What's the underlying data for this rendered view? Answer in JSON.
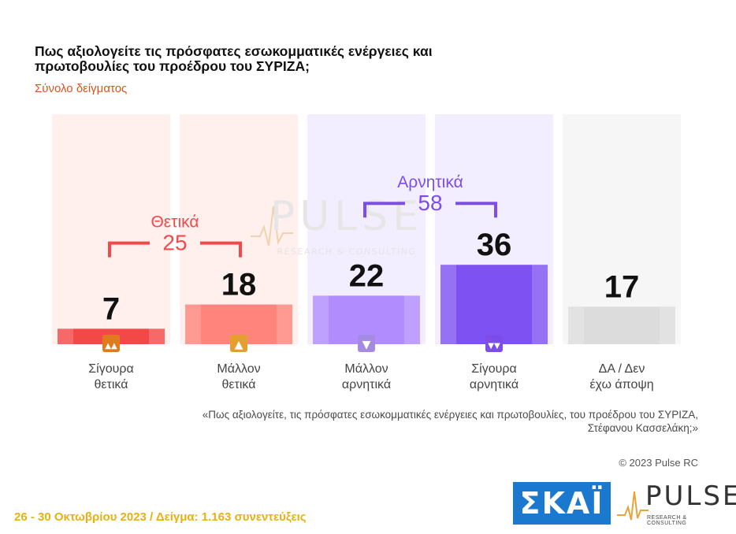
{
  "header": {
    "title": "Πως αξιολογείτε τις πρόσφατες εσωκομματικές ενέργειες και πρωτοβουλίες του προέδρου του ΣΥΡΙΖΑ;",
    "subtitle": "Σύνολο δείγματος"
  },
  "chart_data": {
    "type": "bar",
    "categories": [
      "Σίγουρα θετικά",
      "Μάλλον θετικά",
      "Μάλλον αρνητικά",
      "Σίγουρα αρνητικά",
      "ΔΑ / Δεν έχω άποψη"
    ],
    "values": [
      7,
      18,
      22,
      36,
      17
    ],
    "ylim": [
      0,
      100
    ],
    "colors": [
      "#f34848",
      "#ff847c",
      "#b08cff",
      "#7e52f2",
      "#dcdcdc"
    ],
    "groups": [
      {
        "label": "Θετικά",
        "value": 25,
        "color": "#f04a4a"
      },
      {
        "label": "Αρνητικά",
        "value": 58,
        "color": "#7c4de8"
      }
    ],
    "icons": [
      "double-thumbs-up-icon",
      "thumbs-up-icon",
      "thumbs-down-icon",
      "double-thumbs-down-icon",
      ""
    ]
  },
  "watermark": {
    "word": "PULSE",
    "sub": "RESEARCH & CONSULTING"
  },
  "notes": {
    "question": "«Πως αξιολογείτε, τις πρόσφατες εσωκομματικές ενέργειες και πρωτοβουλίες, του προέδρου του ΣΥΡΙΖΑ, Στέφανου Κασσελάκη;»",
    "copyright": "© 2023 Pulse RC"
  },
  "footer": {
    "text": "26 - 30 Οκτωβρίου 2023 / Δείγμα: 1.163 συνεντεύξεις"
  },
  "logos": {
    "skai": "ΣΚΑΪ",
    "pulse": "PULSE",
    "pulse_sub": "RESEARCH & CONSULTING"
  }
}
